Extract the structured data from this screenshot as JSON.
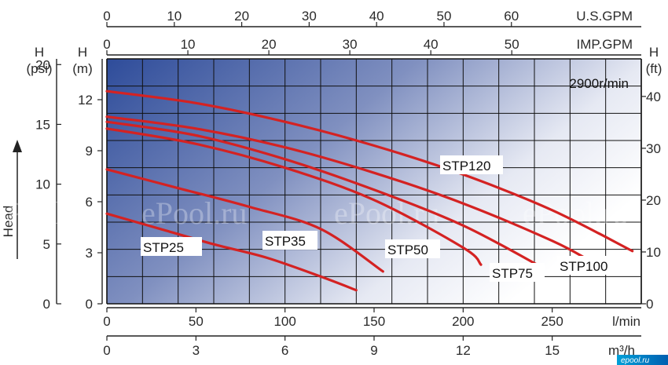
{
  "chart_data": {
    "type": "line",
    "title": "",
    "speed_label": "2900r/min",
    "xlabel": "l/min",
    "ylabel": "H (m)",
    "xlim": [
      0,
      300
    ],
    "ylim": [
      0,
      14.4
    ],
    "grid": true,
    "axes": {
      "top_usgpm": {
        "unit": "U.S.GPM",
        "ticks": [
          0,
          10,
          20,
          30,
          40,
          50,
          60
        ]
      },
      "top_impgpm": {
        "unit": "IMP.GPM",
        "ticks": [
          0,
          10,
          20,
          30,
          40,
          50
        ]
      },
      "bottom_lmin": {
        "unit": "l/min",
        "ticks": [
          0,
          50,
          100,
          150,
          200,
          250
        ]
      },
      "bottom_m3h": {
        "unit": "m³/h",
        "ticks": [
          0,
          3,
          6,
          9,
          12,
          15
        ]
      },
      "left_m": {
        "head": "H",
        "unit": "(m)",
        "ticks": [
          0,
          3,
          6,
          9,
          12
        ]
      },
      "left_psi": {
        "head": "H",
        "unit": "(psi)",
        "ticks": [
          0,
          5,
          10,
          15,
          20
        ]
      },
      "right_ft": {
        "head": "H",
        "unit": "(ft)",
        "ticks": [
          0,
          10,
          20,
          30,
          40
        ]
      }
    },
    "side_label": "Head",
    "series": [
      {
        "name": "STP25",
        "x": [
          0,
          30,
          60,
          90,
          120,
          140
        ],
        "y": [
          5.3,
          4.4,
          3.5,
          2.7,
          1.6,
          0.8
        ]
      },
      {
        "name": "STP35",
        "x": [
          0,
          40,
          80,
          120,
          155
        ],
        "y": [
          7.9,
          6.8,
          5.7,
          4.4,
          1.9
        ]
      },
      {
        "name": "STP50",
        "x": [
          0,
          50,
          100,
          150,
          200,
          210
        ],
        "y": [
          10.3,
          9.4,
          8.0,
          6.1,
          3.3,
          2.3
        ]
      },
      {
        "name": "STP75",
        "x": [
          0,
          50,
          100,
          150,
          200,
          245
        ],
        "y": [
          10.7,
          9.9,
          8.5,
          6.7,
          4.6,
          2.1
        ]
      },
      {
        "name": "STP100",
        "x": [
          0,
          50,
          100,
          150,
          200,
          250,
          270
        ],
        "y": [
          11.0,
          10.3,
          9.2,
          7.7,
          5.9,
          3.7,
          2.6
        ]
      },
      {
        "name": "STP120",
        "x": [
          0,
          50,
          100,
          150,
          200,
          250,
          295
        ],
        "y": [
          12.5,
          11.8,
          10.7,
          9.3,
          7.6,
          5.5,
          3.1
        ]
      }
    ],
    "series_labels": [
      "STP25",
      "STP35",
      "STP50",
      "STP75",
      "STP100",
      "STP120"
    ],
    "watermark": "ePool.ru",
    "site": "epool.ru",
    "colors": {
      "curve": "#d42222",
      "bg_dark": "#2e4c9a",
      "bg_light": "#ffffff",
      "grid": "#111111"
    }
  }
}
